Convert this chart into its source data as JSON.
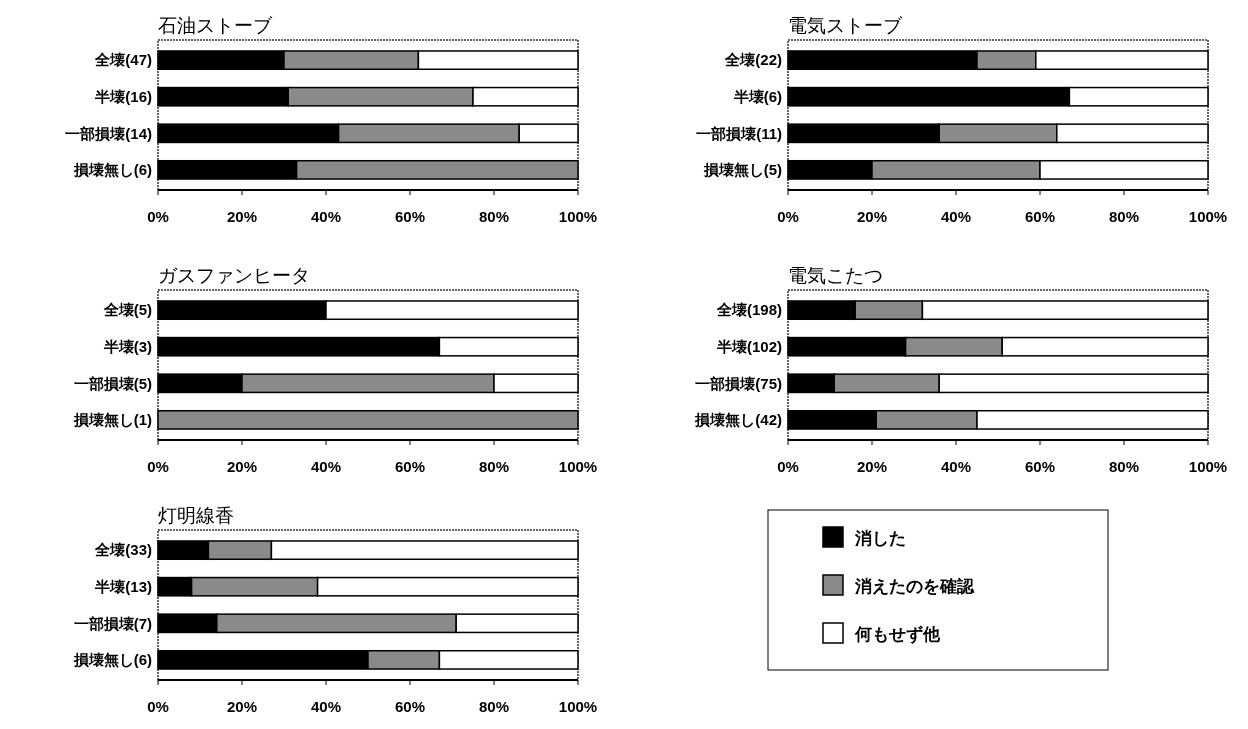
{
  "chart_data": [
    {
      "type": "bar",
      "orientation": "horizontal",
      "stacked": true,
      "title": "石油ストーブ",
      "categories": [
        "全壊(47)",
        "半壊(16)",
        "一部損壊(14)",
        "損壊無し(6)"
      ],
      "series": [
        {
          "color": "#000000",
          "values": [
            30,
            31,
            43,
            33
          ]
        },
        {
          "color": "#8a8a8a",
          "values": [
            32,
            44,
            43,
            67
          ]
        },
        {
          "color": "#ffffff",
          "values": [
            38,
            25,
            14,
            0
          ]
        }
      ],
      "xlim": [
        0,
        100
      ],
      "xticks": [
        {
          "value": 0,
          "label": "0%"
        },
        {
          "value": 20,
          "label": "20%"
        },
        {
          "value": 40,
          "label": "40%"
        },
        {
          "value": 60,
          "label": "60%"
        },
        {
          "value": 80,
          "label": "80%"
        },
        {
          "value": 100,
          "label": "100%"
        }
      ]
    },
    {
      "type": "bar",
      "orientation": "horizontal",
      "stacked": true,
      "title": "電気ストーブ",
      "categories": [
        "全壊(22)",
        "半壊(6)",
        "一部損壊(11)",
        "損壊無し(5)"
      ],
      "series": [
        {
          "color": "#000000",
          "values": [
            45,
            67,
            36,
            20
          ]
        },
        {
          "color": "#8a8a8a",
          "values": [
            14,
            0,
            28,
            40
          ]
        },
        {
          "color": "#ffffff",
          "values": [
            41,
            33,
            36,
            40
          ]
        }
      ],
      "xlim": [
        0,
        100
      ],
      "xticks": [
        {
          "value": 0,
          "label": "0%"
        },
        {
          "value": 20,
          "label": "20%"
        },
        {
          "value": 40,
          "label": "40%"
        },
        {
          "value": 60,
          "label": "60%"
        },
        {
          "value": 80,
          "label": "80%"
        },
        {
          "value": 100,
          "label": "100%"
        }
      ]
    },
    {
      "type": "bar",
      "orientation": "horizontal",
      "stacked": true,
      "title": "ガスファンヒータ",
      "categories": [
        "全壊(5)",
        "半壊(3)",
        "一部損壊(5)",
        "損壊無し(1)"
      ],
      "series": [
        {
          "color": "#000000",
          "values": [
            40,
            67,
            20,
            0
          ]
        },
        {
          "color": "#8a8a8a",
          "values": [
            0,
            0,
            60,
            100
          ]
        },
        {
          "color": "#ffffff",
          "values": [
            60,
            33,
            20,
            0
          ]
        }
      ],
      "xlim": [
        0,
        100
      ],
      "xticks": [
        {
          "value": 0,
          "label": "0%"
        },
        {
          "value": 20,
          "label": "20%"
        },
        {
          "value": 40,
          "label": "40%"
        },
        {
          "value": 60,
          "label": "60%"
        },
        {
          "value": 80,
          "label": "80%"
        },
        {
          "value": 100,
          "label": "100%"
        }
      ]
    },
    {
      "type": "bar",
      "orientation": "horizontal",
      "stacked": true,
      "title": "電気こたつ",
      "categories": [
        "全壊(198)",
        "半壊(102)",
        "一部損壊(75)",
        "損壊無し(42)"
      ],
      "series": [
        {
          "color": "#000000",
          "values": [
            16,
            28,
            11,
            21
          ]
        },
        {
          "color": "#8a8a8a",
          "values": [
            16,
            23,
            25,
            24
          ]
        },
        {
          "color": "#ffffff",
          "values": [
            68,
            49,
            64,
            55
          ]
        }
      ],
      "xlim": [
        0,
        100
      ],
      "xticks": [
        {
          "value": 0,
          "label": "0%"
        },
        {
          "value": 20,
          "label": "20%"
        },
        {
          "value": 40,
          "label": "40%"
        },
        {
          "value": 60,
          "label": "60%"
        },
        {
          "value": 80,
          "label": "80%"
        },
        {
          "value": 100,
          "label": "100%"
        }
      ]
    },
    {
      "type": "bar",
      "orientation": "horizontal",
      "stacked": true,
      "title": "灯明線香",
      "categories": [
        "全壊(33)",
        "半壊(13)",
        "一部損壊(7)",
        "損壊無し(6)"
      ],
      "series": [
        {
          "name": "消した",
          "color": "#000000",
          "values": [
            12,
            8,
            14,
            50
          ]
        },
        {
          "name": "消えたのを確認",
          "color": "#8a8a8a",
          "values": [
            15,
            30,
            57,
            17
          ]
        },
        {
          "name": "何もせず他",
          "color": "#ffffff",
          "values": [
            73,
            62,
            29,
            33
          ]
        }
      ],
      "xlim": [
        0,
        100
      ],
      "xticks": [
        {
          "value": 0,
          "label": "0%"
        },
        {
          "value": 20,
          "label": "20%"
        },
        {
          "value": 40,
          "label": "40%"
        },
        {
          "value": 60,
          "label": "60%"
        },
        {
          "value": 80,
          "label": "80%"
        },
        {
          "value": 100,
          "label": "100%"
        }
      ],
      "legend": "right"
    }
  ]
}
